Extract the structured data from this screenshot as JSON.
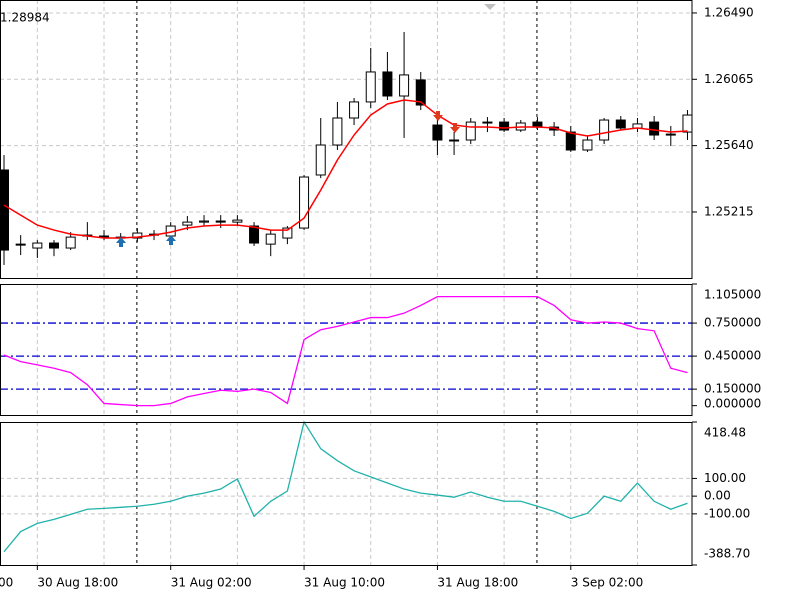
{
  "chart_data": [
    {
      "type": "candlestick",
      "header_value": "1.28984",
      "cut_label": "00",
      "categories": [
        null,
        null,
        "30 Aug 18:00",
        null,
        null,
        null,
        null,
        null,
        null,
        null,
        "31 Aug 02:00",
        null,
        null,
        null,
        null,
        null,
        null,
        null,
        "31 Aug 10:00",
        null,
        null,
        null,
        null,
        null,
        null,
        null,
        "31 Aug 18:00",
        null,
        null,
        null,
        null,
        null,
        null,
        null,
        "3 Sep 02:00",
        null,
        null,
        null,
        null,
        null,
        null,
        null
      ],
      "open": [
        1.25484,
        1.25009,
        1.24984,
        1.25016,
        1.24984,
        1.25061,
        1.25061,
        1.25048,
        1.25048,
        1.25073,
        1.25061,
        1.25131,
        1.2515,
        1.25157,
        1.2515,
        1.25125,
        1.25009,
        1.25048,
        1.25112,
        1.25452,
        1.25644,
        1.25817,
        1.2592,
        1.26112,
        1.25958,
        1.26061,
        1.25772,
        1.25676,
        1.25676,
        1.25791,
        1.25791,
        1.2574,
        1.25791,
        1.25759,
        1.25727,
        1.25612,
        1.25676,
        1.25804,
        1.25753,
        1.25791,
        1.25708,
        1.25727
      ],
      "high": [
        1.2558,
        1.25067,
        1.25035,
        1.25035,
        1.25086,
        1.2515,
        1.25099,
        1.2508,
        1.25112,
        1.25099,
        1.2515,
        1.25189,
        1.25195,
        1.25195,
        1.25195,
        1.2515,
        1.25099,
        1.25125,
        1.25452,
        1.25817,
        1.2592,
        1.25945,
        1.26266,
        1.2624,
        1.26368,
        1.26112,
        1.25855,
        1.25727,
        1.25817,
        1.25823,
        1.25817,
        1.25804,
        1.25823,
        1.25791,
        1.25766,
        1.25702,
        1.25817,
        1.2583,
        1.25817,
        1.2583,
        1.25766,
        1.25868
      ],
      "low": [
        1.24875,
        1.24939,
        1.2492,
        1.24932,
        1.24971,
        1.25035,
        1.25035,
        1.25009,
        1.25022,
        1.25035,
        1.25035,
        1.25099,
        1.25125,
        1.25112,
        1.25125,
        1.24997,
        1.24932,
        1.25009,
        1.25099,
        1.25432,
        1.25612,
        1.25772,
        1.25881,
        1.25932,
        1.25689,
        1.25868,
        1.2558,
        1.2558,
        1.2565,
        1.25727,
        1.25727,
        1.25727,
        1.2574,
        1.25702,
        1.25599,
        1.25599,
        1.2565,
        1.2574,
        1.25727,
        1.25676,
        1.25637,
        1.25676
      ],
      "close": [
        1.24971,
        1.25003,
        1.25016,
        1.24984,
        1.25054,
        1.25067,
        1.25054,
        1.25054,
        1.2508,
        1.25067,
        1.25125,
        1.2515,
        1.25157,
        1.2515,
        1.25163,
        1.25016,
        1.25073,
        1.25112,
        1.25439,
        1.25644,
        1.25817,
        1.2592,
        1.26112,
        1.25958,
        1.26093,
        1.259,
        1.25676,
        1.2567,
        1.25791,
        1.25791,
        1.2574,
        1.25785,
        1.25759,
        1.2574,
        1.25612,
        1.25676,
        1.25804,
        1.25753,
        1.25779,
        1.25708,
        1.25714,
        1.25836
      ],
      "overlay": {
        "color": "#ff0000",
        "values": [
          1.25259,
          1.25195,
          1.25131,
          1.25099,
          1.25073,
          1.25061,
          1.25048,
          1.25048,
          1.25054,
          1.25067,
          1.25086,
          1.25112,
          1.25125,
          1.25131,
          1.25131,
          1.25118,
          1.25099,
          1.25099,
          1.25176,
          1.25355,
          1.25548,
          1.25708,
          1.25836,
          1.25907,
          1.25932,
          1.2592,
          1.25836,
          1.25772,
          1.25759,
          1.25759,
          1.25753,
          1.25759,
          1.25759,
          1.25753,
          1.25721,
          1.25702,
          1.25721,
          1.2574,
          1.25753,
          1.2574,
          1.25727,
          1.25734
        ]
      },
      "ylim": [
        1.24792,
        1.26573
      ],
      "yticks": [
        {
          "value": 1.2649,
          "label": "1.26490"
        },
        {
          "value": 1.26065,
          "label": "1.26065"
        },
        {
          "value": 1.2564,
          "label": "1.25640"
        },
        {
          "value": 1.25215,
          "label": "1.25215"
        }
      ],
      "grid": true
    },
    {
      "type": "line",
      "color": "#ff00ff",
      "values": [
        0.46,
        0.4,
        0.37,
        0.34,
        0.3,
        0.19,
        0.02,
        0.01,
        0.0,
        0.0,
        0.02,
        0.08,
        0.11,
        0.14,
        0.13,
        0.15,
        0.12,
        0.02,
        0.6,
        0.69,
        0.72,
        0.76,
        0.8,
        0.8,
        0.84,
        0.91,
        0.99,
        0.99,
        0.99,
        0.99,
        0.99,
        0.99,
        0.99,
        0.91,
        0.78,
        0.75,
        0.76,
        0.75,
        0.7,
        0.68,
        0.34,
        0.3
      ],
      "ylim": [
        -0.085,
        1.105
      ],
      "yticks": [
        {
          "value": 1.105,
          "label": "1.105000"
        },
        {
          "value": 0.75,
          "label": "0.750000"
        },
        {
          "value": 0.45,
          "label": "0.450000"
        },
        {
          "value": 0.15,
          "label": "0.150000"
        },
        {
          "value": 0,
          "label": "0.000000"
        }
      ],
      "levels": [
        0.75,
        0.45,
        0.15
      ],
      "level_color": "#0000cd"
    },
    {
      "type": "line",
      "color": "#20b2aa",
      "values": [
        -314,
        -200,
        -154,
        -131,
        -103,
        -74,
        -69,
        -63,
        -57,
        -46,
        -29,
        0,
        17,
        40,
        97,
        -114,
        -29,
        29,
        418.48,
        268,
        200,
        143,
        109,
        74,
        40,
        17,
        6,
        -6,
        23,
        -6,
        -29,
        -29,
        -57,
        -86,
        -126,
        -97,
        0,
        -29,
        74,
        -29,
        -74,
        -40
      ],
      "ylim": [
        -388.7,
        418.48
      ],
      "yticks": [
        {
          "value": 418.48,
          "label": "418.48"
        },
        {
          "value": 100,
          "label": "100.00"
        },
        {
          "value": 0,
          "label": "0.00"
        },
        {
          "value": -100,
          "label": "-100.00"
        },
        {
          "value": -388.7,
          "label": "-388.70"
        }
      ],
      "grid": true
    }
  ]
}
